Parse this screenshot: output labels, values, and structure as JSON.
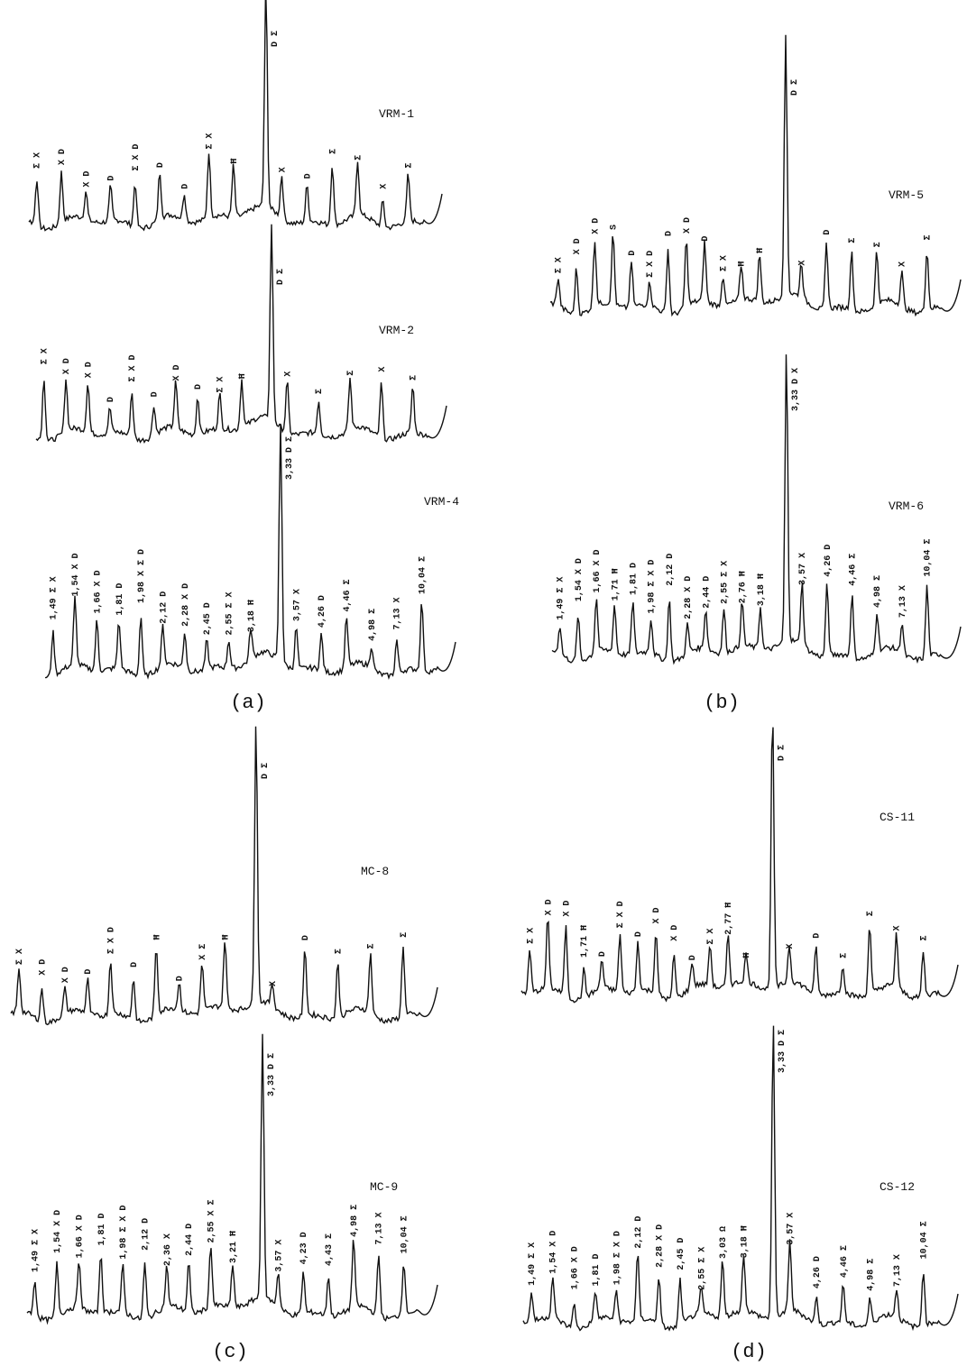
{
  "panels": [
    {
      "caption": "(a)",
      "traces": [
        {
          "name": "VRM-1",
          "peaks": [
            "Σ X",
            "X D",
            "X D",
            "D",
            "Σ X D",
            "D",
            "D",
            "Σ X",
            "Ħ",
            "D Σ",
            "X",
            "D",
            "Σ",
            "Σ",
            "X",
            "Σ"
          ]
        },
        {
          "name": "VRM-2",
          "peaks": [
            "Σ X",
            "X D",
            "X D",
            "D",
            "Σ X D",
            "D",
            "X D",
            "D",
            "Σ X",
            "Ħ",
            "D Σ",
            "X",
            "Σ",
            "Σ",
            "X",
            "Σ"
          ]
        },
        {
          "name": "VRM-4",
          "peaks": [
            "1,49 Σ X",
            "1,54 X D",
            "1,66 X D",
            "1,81 D",
            "1,98 X Σ D",
            "2,12 D",
            "2,28 X D",
            "2,45 D",
            "2,55 Σ X",
            "3,18 Ħ",
            "3,33 D Σ",
            "3,57 X",
            "4,26 D",
            "4,46 Σ",
            "4,98 Σ",
            "7,13 X",
            "10,04 Σ"
          ]
        }
      ]
    },
    {
      "caption": "(b)",
      "traces": [
        {
          "name": "VRM-5",
          "peaks": [
            "Σ X",
            "X D",
            "X D",
            "S",
            "D",
            "Σ X D",
            "D",
            "X D",
            "D",
            "Σ X",
            "Ħ",
            "Ħ",
            "D Σ",
            "X",
            "D",
            "Σ",
            "Σ",
            "X",
            "Σ"
          ]
        },
        {
          "name": "VRM-6",
          "peaks": [
            "1,49 Σ X",
            "1,54 X D",
            "1,66 X D",
            "1,71 Ħ",
            "1,81 D",
            "1,98 Σ X D",
            "2,12 D",
            "2,28 X D",
            "2,44 D",
            "2,55 Σ X",
            "2,76 Ħ",
            "3,18 Ħ",
            "3,33 D X",
            "3,57 X",
            "4,26 D",
            "4,46 Σ",
            "4,98 Σ",
            "7,13 X",
            "10,04 Σ"
          ]
        }
      ]
    },
    {
      "caption": "(c)",
      "traces": [
        {
          "name": "MC-8",
          "peaks": [
            "Σ X",
            "X D",
            "X D",
            "D",
            "Σ X D",
            "D",
            "Ħ",
            "D",
            "X Σ",
            "Ħ",
            "D Σ",
            "X",
            "D",
            "Σ",
            "Σ",
            "Σ"
          ]
        },
        {
          "name": "MC-9",
          "peaks": [
            "1,49 Σ X",
            "1,54 X D",
            "1,66 X D",
            "1,81 D",
            "1,98 Σ X D",
            "2,12 D",
            "2,36 X",
            "2,44 D",
            "2,55 X Σ",
            "3,21 Ħ",
            "3,33 D Σ",
            "3,57 X",
            "4,23 D",
            "4,43 Σ",
            "4,98 Σ",
            "7,13 X",
            "10,04 Σ"
          ]
        }
      ]
    },
    {
      "caption": "(d)",
      "traces": [
        {
          "name": "CS-11",
          "peaks": [
            "Σ X",
            "X D",
            "X D",
            "1,71 Ħ",
            "D",
            "Σ X D",
            "D",
            "X D",
            "X D",
            "D",
            "Σ X",
            "2,77 Ħ",
            "Ħ",
            "D Σ",
            "X",
            "D",
            "Σ",
            "Σ",
            "X",
            "Σ"
          ]
        },
        {
          "name": "CS-12",
          "peaks": [
            "1,49 Σ X",
            "1,54 X D",
            "1,66 X D",
            "1,81 D",
            "1,98 Σ X D",
            "2,12 D",
            "2,28 X D",
            "2,45 D",
            "2,55 Σ X",
            "3,03 Ω",
            "3,18 Ħ",
            "3,33 D Σ",
            "3,57 X",
            "4,26 D",
            "4,46 Σ",
            "4,98 Σ",
            "7,13 X",
            "10,04 Σ"
          ]
        }
      ]
    }
  ]
}
